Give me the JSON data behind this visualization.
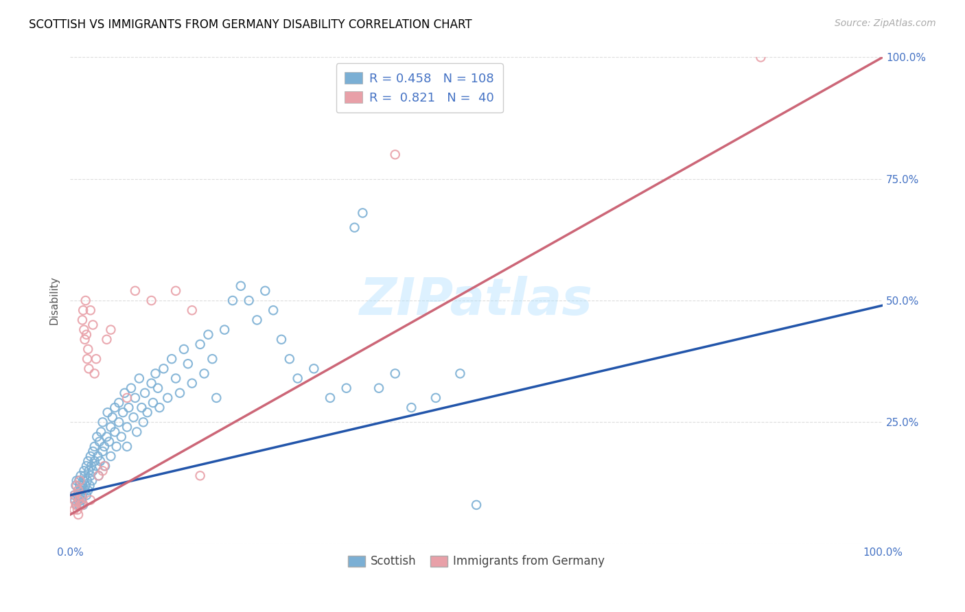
{
  "title": "SCOTTISH VS IMMIGRANTS FROM GERMANY DISABILITY CORRELATION CHART",
  "source": "Source: ZipAtlas.com",
  "ylabel": "Disability",
  "watermark": "ZIPatlas",
  "scottish_color": "#7bafd4",
  "germany_color": "#e8a0a8",
  "scottish_line_color": "#2255aa",
  "germany_line_color": "#cc6677",
  "legend_R_scottish": "0.458",
  "legend_N_scottish": "108",
  "legend_R_germany": "0.821",
  "legend_N_germany": "40",
  "scottish_scatter": [
    [
      0.005,
      0.1
    ],
    [
      0.006,
      0.09
    ],
    [
      0.007,
      0.12
    ],
    [
      0.008,
      0.08
    ],
    [
      0.008,
      0.13
    ],
    [
      0.009,
      0.1
    ],
    [
      0.01,
      0.11
    ],
    [
      0.01,
      0.09
    ],
    [
      0.011,
      0.13
    ],
    [
      0.011,
      0.08
    ],
    [
      0.012,
      0.1
    ],
    [
      0.012,
      0.12
    ],
    [
      0.013,
      0.11
    ],
    [
      0.013,
      0.14
    ],
    [
      0.014,
      0.09
    ],
    [
      0.015,
      0.12
    ],
    [
      0.015,
      0.1
    ],
    [
      0.016,
      0.13
    ],
    [
      0.016,
      0.08
    ],
    [
      0.017,
      0.15
    ],
    [
      0.018,
      0.11
    ],
    [
      0.018,
      0.14
    ],
    [
      0.019,
      0.12
    ],
    [
      0.02,
      0.16
    ],
    [
      0.02,
      0.1
    ],
    [
      0.021,
      0.13
    ],
    [
      0.022,
      0.17
    ],
    [
      0.022,
      0.11
    ],
    [
      0.023,
      0.15
    ],
    [
      0.024,
      0.12
    ],
    [
      0.025,
      0.18
    ],
    [
      0.025,
      0.14
    ],
    [
      0.026,
      0.16
    ],
    [
      0.027,
      0.13
    ],
    [
      0.028,
      0.19
    ],
    [
      0.028,
      0.15
    ],
    [
      0.03,
      0.17
    ],
    [
      0.03,
      0.2
    ],
    [
      0.032,
      0.16
    ],
    [
      0.033,
      0.22
    ],
    [
      0.034,
      0.18
    ],
    [
      0.035,
      0.14
    ],
    [
      0.036,
      0.21
    ],
    [
      0.037,
      0.17
    ],
    [
      0.038,
      0.23
    ],
    [
      0.04,
      0.19
    ],
    [
      0.04,
      0.25
    ],
    [
      0.042,
      0.2
    ],
    [
      0.043,
      0.16
    ],
    [
      0.045,
      0.22
    ],
    [
      0.046,
      0.27
    ],
    [
      0.048,
      0.21
    ],
    [
      0.05,
      0.24
    ],
    [
      0.05,
      0.18
    ],
    [
      0.052,
      0.26
    ],
    [
      0.055,
      0.23
    ],
    [
      0.055,
      0.28
    ],
    [
      0.057,
      0.2
    ],
    [
      0.06,
      0.25
    ],
    [
      0.06,
      0.29
    ],
    [
      0.063,
      0.22
    ],
    [
      0.065,
      0.27
    ],
    [
      0.067,
      0.31
    ],
    [
      0.07,
      0.24
    ],
    [
      0.07,
      0.2
    ],
    [
      0.072,
      0.28
    ],
    [
      0.075,
      0.32
    ],
    [
      0.078,
      0.26
    ],
    [
      0.08,
      0.3
    ],
    [
      0.082,
      0.23
    ],
    [
      0.085,
      0.34
    ],
    [
      0.088,
      0.28
    ],
    [
      0.09,
      0.25
    ],
    [
      0.092,
      0.31
    ],
    [
      0.095,
      0.27
    ],
    [
      0.1,
      0.33
    ],
    [
      0.102,
      0.29
    ],
    [
      0.105,
      0.35
    ],
    [
      0.108,
      0.32
    ],
    [
      0.11,
      0.28
    ],
    [
      0.115,
      0.36
    ],
    [
      0.12,
      0.3
    ],
    [
      0.125,
      0.38
    ],
    [
      0.13,
      0.34
    ],
    [
      0.135,
      0.31
    ],
    [
      0.14,
      0.4
    ],
    [
      0.145,
      0.37
    ],
    [
      0.15,
      0.33
    ],
    [
      0.16,
      0.41
    ],
    [
      0.165,
      0.35
    ],
    [
      0.17,
      0.43
    ],
    [
      0.175,
      0.38
    ],
    [
      0.18,
      0.3
    ],
    [
      0.19,
      0.44
    ],
    [
      0.2,
      0.5
    ],
    [
      0.21,
      0.53
    ],
    [
      0.22,
      0.5
    ],
    [
      0.23,
      0.46
    ],
    [
      0.24,
      0.52
    ],
    [
      0.25,
      0.48
    ],
    [
      0.26,
      0.42
    ],
    [
      0.27,
      0.38
    ],
    [
      0.28,
      0.34
    ],
    [
      0.3,
      0.36
    ],
    [
      0.32,
      0.3
    ],
    [
      0.34,
      0.32
    ],
    [
      0.35,
      0.65
    ],
    [
      0.36,
      0.68
    ],
    [
      0.38,
      0.32
    ],
    [
      0.4,
      0.35
    ],
    [
      0.42,
      0.28
    ],
    [
      0.45,
      0.3
    ],
    [
      0.48,
      0.35
    ],
    [
      0.5,
      0.08
    ]
  ],
  "germany_scatter": [
    [
      0.005,
      0.09
    ],
    [
      0.006,
      0.1
    ],
    [
      0.007,
      0.08
    ],
    [
      0.008,
      0.12
    ],
    [
      0.009,
      0.07
    ],
    [
      0.01,
      0.11
    ],
    [
      0.011,
      0.09
    ],
    [
      0.012,
      0.13
    ],
    [
      0.013,
      0.08
    ],
    [
      0.014,
      0.1
    ],
    [
      0.015,
      0.46
    ],
    [
      0.016,
      0.48
    ],
    [
      0.017,
      0.44
    ],
    [
      0.018,
      0.42
    ],
    [
      0.019,
      0.5
    ],
    [
      0.02,
      0.43
    ],
    [
      0.021,
      0.38
    ],
    [
      0.022,
      0.4
    ],
    [
      0.023,
      0.36
    ],
    [
      0.025,
      0.48
    ],
    [
      0.028,
      0.45
    ],
    [
      0.03,
      0.35
    ],
    [
      0.032,
      0.38
    ],
    [
      0.035,
      0.14
    ],
    [
      0.04,
      0.15
    ],
    [
      0.042,
      0.16
    ],
    [
      0.045,
      0.42
    ],
    [
      0.05,
      0.44
    ],
    [
      0.07,
      0.3
    ],
    [
      0.08,
      0.52
    ],
    [
      0.1,
      0.5
    ],
    [
      0.13,
      0.52
    ],
    [
      0.15,
      0.48
    ],
    [
      0.16,
      0.14
    ],
    [
      0.4,
      0.8
    ],
    [
      0.85,
      1.0
    ],
    [
      0.005,
      0.07
    ],
    [
      0.01,
      0.06
    ],
    [
      0.015,
      0.08
    ],
    [
      0.025,
      0.09
    ]
  ],
  "scottish_line": [
    [
      0.0,
      0.1
    ],
    [
      1.0,
      0.49
    ]
  ],
  "germany_line": [
    [
      0.0,
      0.06
    ],
    [
      1.0,
      1.0
    ]
  ],
  "xlim": [
    0,
    1
  ],
  "ylim": [
    0,
    1
  ],
  "background_color": "#ffffff",
  "grid_color": "#dddddd"
}
